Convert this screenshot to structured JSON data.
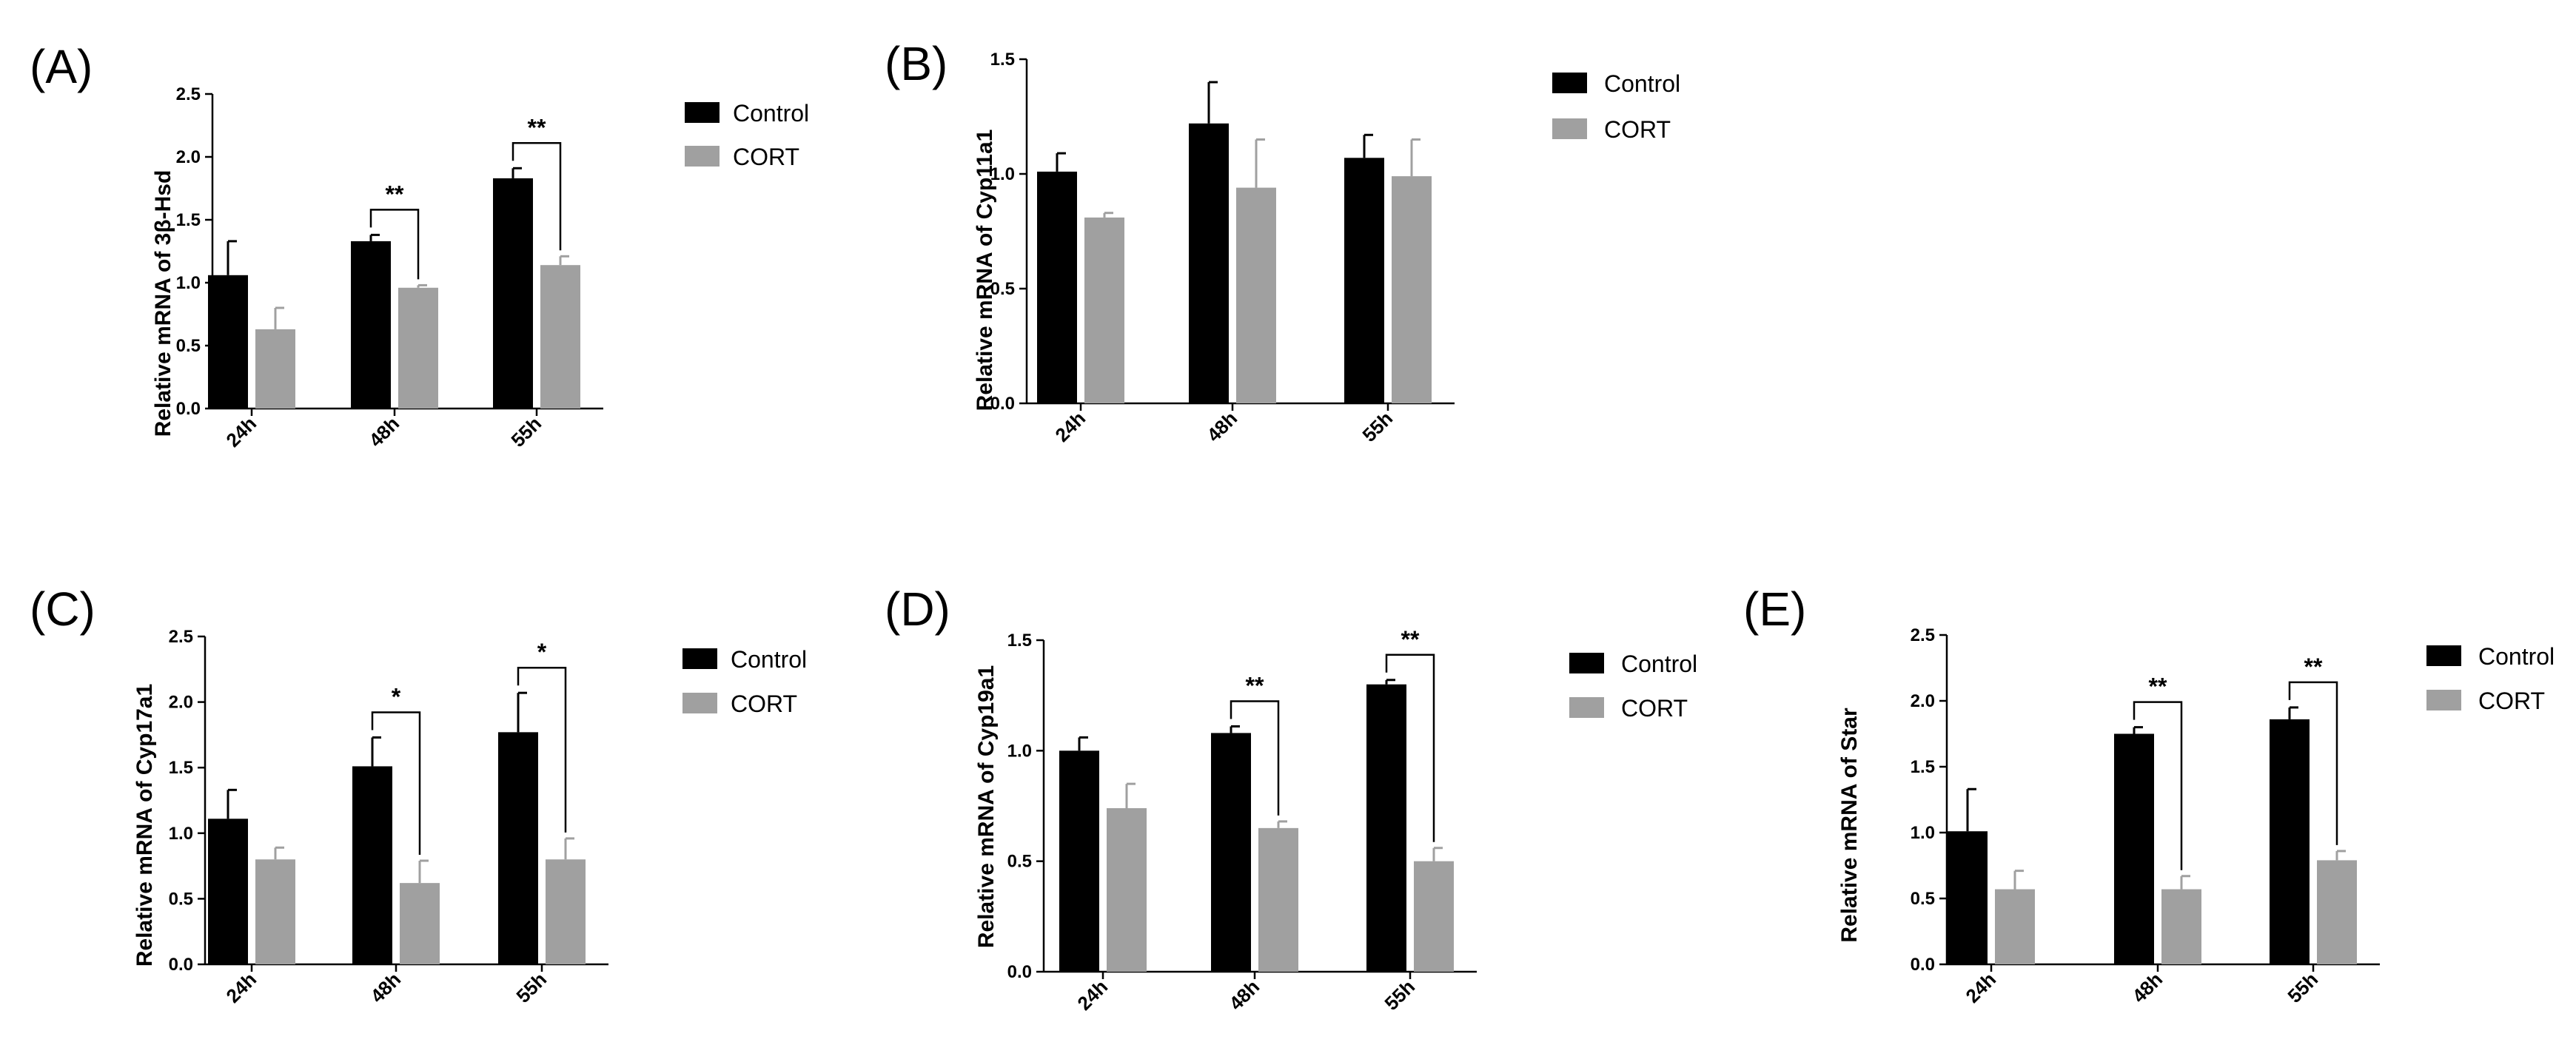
{
  "legend": {
    "control": "Control",
    "cort": "CORT"
  },
  "colors": {
    "control": "#000000",
    "cort": "#a0a0a0"
  },
  "chart_data": [
    {
      "type": "bar",
      "panel": "(A)",
      "ylabel": "Relative mRNA of 3β-Hsd",
      "categories": [
        "24h",
        "48h",
        "55h"
      ],
      "ylim": [
        0,
        2.5
      ],
      "yticks": [
        0.0,
        0.5,
        1.0,
        1.5,
        2.0,
        2.5
      ],
      "series": [
        {
          "name": "Control",
          "values": [
            1.06,
            1.33,
            1.83
          ],
          "errors": [
            0.27,
            0.05,
            0.08
          ]
        },
        {
          "name": "CORT",
          "values": [
            0.63,
            0.96,
            1.14
          ],
          "errors": [
            0.17,
            0.02,
            0.07
          ]
        }
      ],
      "significance": [
        "",
        "**",
        "**"
      ]
    },
    {
      "type": "bar",
      "panel": "(B)",
      "ylabel": "Relative mRNA of Cyp11a1",
      "categories": [
        "24h",
        "48h",
        "55h"
      ],
      "ylim": [
        0,
        1.5
      ],
      "yticks": [
        0.0,
        0.5,
        1.0,
        1.5
      ],
      "series": [
        {
          "name": "Control",
          "values": [
            1.01,
            1.22,
            1.07
          ],
          "errors": [
            0.08,
            0.18,
            0.1
          ]
        },
        {
          "name": "CORT",
          "values": [
            0.81,
            0.94,
            0.99
          ],
          "errors": [
            0.02,
            0.21,
            0.16
          ]
        }
      ],
      "significance": [
        "",
        "",
        ""
      ]
    },
    {
      "type": "bar",
      "panel": "(C)",
      "ylabel": "Relative mRNA of Cyp17a1",
      "categories": [
        "24h",
        "48h",
        "55h"
      ],
      "ylim": [
        0,
        2.5
      ],
      "yticks": [
        0.0,
        0.5,
        1.0,
        1.5,
        2.0,
        2.5
      ],
      "series": [
        {
          "name": "Control",
          "values": [
            1.11,
            1.51,
            1.77
          ],
          "errors": [
            0.22,
            0.22,
            0.3
          ]
        },
        {
          "name": "CORT",
          "values": [
            0.8,
            0.62,
            0.8
          ],
          "errors": [
            0.09,
            0.17,
            0.16
          ]
        }
      ],
      "significance": [
        "",
        "*",
        "*"
      ]
    },
    {
      "type": "bar",
      "panel": "(D)",
      "ylabel": "Relative mRNA of Cyp19a1",
      "categories": [
        "24h",
        "48h",
        "55h"
      ],
      "ylim": [
        0,
        1.5
      ],
      "yticks": [
        0.0,
        0.5,
        1.0,
        1.5
      ],
      "series": [
        {
          "name": "Control",
          "values": [
            1.0,
            1.08,
            1.3
          ],
          "errors": [
            0.06,
            0.03,
            0.02
          ]
        },
        {
          "name": "CORT",
          "values": [
            0.74,
            0.65,
            0.5
          ],
          "errors": [
            0.11,
            0.03,
            0.06
          ]
        }
      ],
      "significance": [
        "",
        "**",
        "**"
      ]
    },
    {
      "type": "bar",
      "panel": "(E)",
      "ylabel": "Relative mRNA of Star",
      "categories": [
        "24h",
        "48h",
        "55h"
      ],
      "ylim": [
        0,
        2.5
      ],
      "yticks": [
        0.0,
        0.5,
        1.0,
        1.5,
        2.0,
        2.5
      ],
      "series": [
        {
          "name": "Control",
          "values": [
            1.01,
            1.75,
            1.86
          ],
          "errors": [
            0.32,
            0.05,
            0.09
          ]
        },
        {
          "name": "CORT",
          "values": [
            0.57,
            0.57,
            0.79
          ],
          "errors": [
            0.14,
            0.1,
            0.07
          ]
        }
      ],
      "significance": [
        "",
        "**",
        "**"
      ]
    }
  ]
}
